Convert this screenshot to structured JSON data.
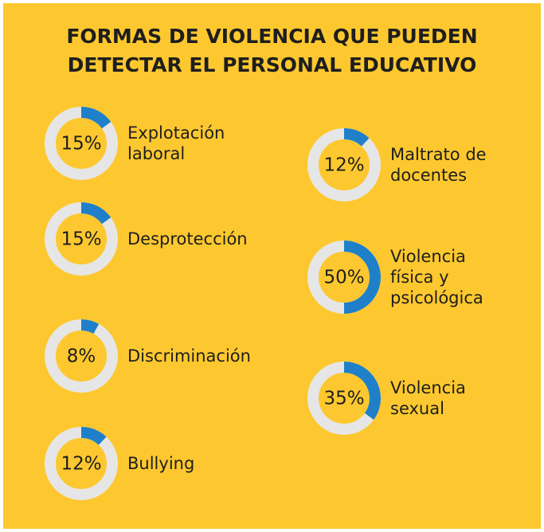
{
  "title": "FORMAS DE VIOLENCIA QUE PUEDEN DETECTAR EL PERSONAL EDUCATIVO",
  "chart_data": [
    {
      "type": "donut",
      "label": "Explotación laboral",
      "values": [
        15
      ],
      "value_labels": [
        "15%"
      ],
      "color": "#1f80c9"
    },
    {
      "type": "donut",
      "label": "Desprotección",
      "values": [
        15
      ],
      "value_labels": [
        "15%"
      ],
      "color": "#1f80c9"
    },
    {
      "type": "donut",
      "label": "Discriminación",
      "values": [
        8
      ],
      "value_labels": [
        "8%"
      ],
      "color": "#1f80c9"
    },
    {
      "type": "donut",
      "label": "Bullying",
      "values": [
        12
      ],
      "value_labels": [
        "12%"
      ],
      "color": "#1f80c9"
    },
    {
      "type": "donut",
      "label": "Maltrato de docentes",
      "values": [
        12
      ],
      "value_labels": [
        "12%"
      ],
      "color": "#1f80c9"
    },
    {
      "type": "donut",
      "label": "Violencia física y psicológica",
      "values": [
        50
      ],
      "value_labels": [
        "50%"
      ],
      "color": "#1f80c9"
    },
    {
      "type": "donut",
      "label": "Violencia sexual",
      "values": [
        35
      ],
      "value_labels": [
        "35%"
      ],
      "color": "#1f80c9"
    }
  ]
}
